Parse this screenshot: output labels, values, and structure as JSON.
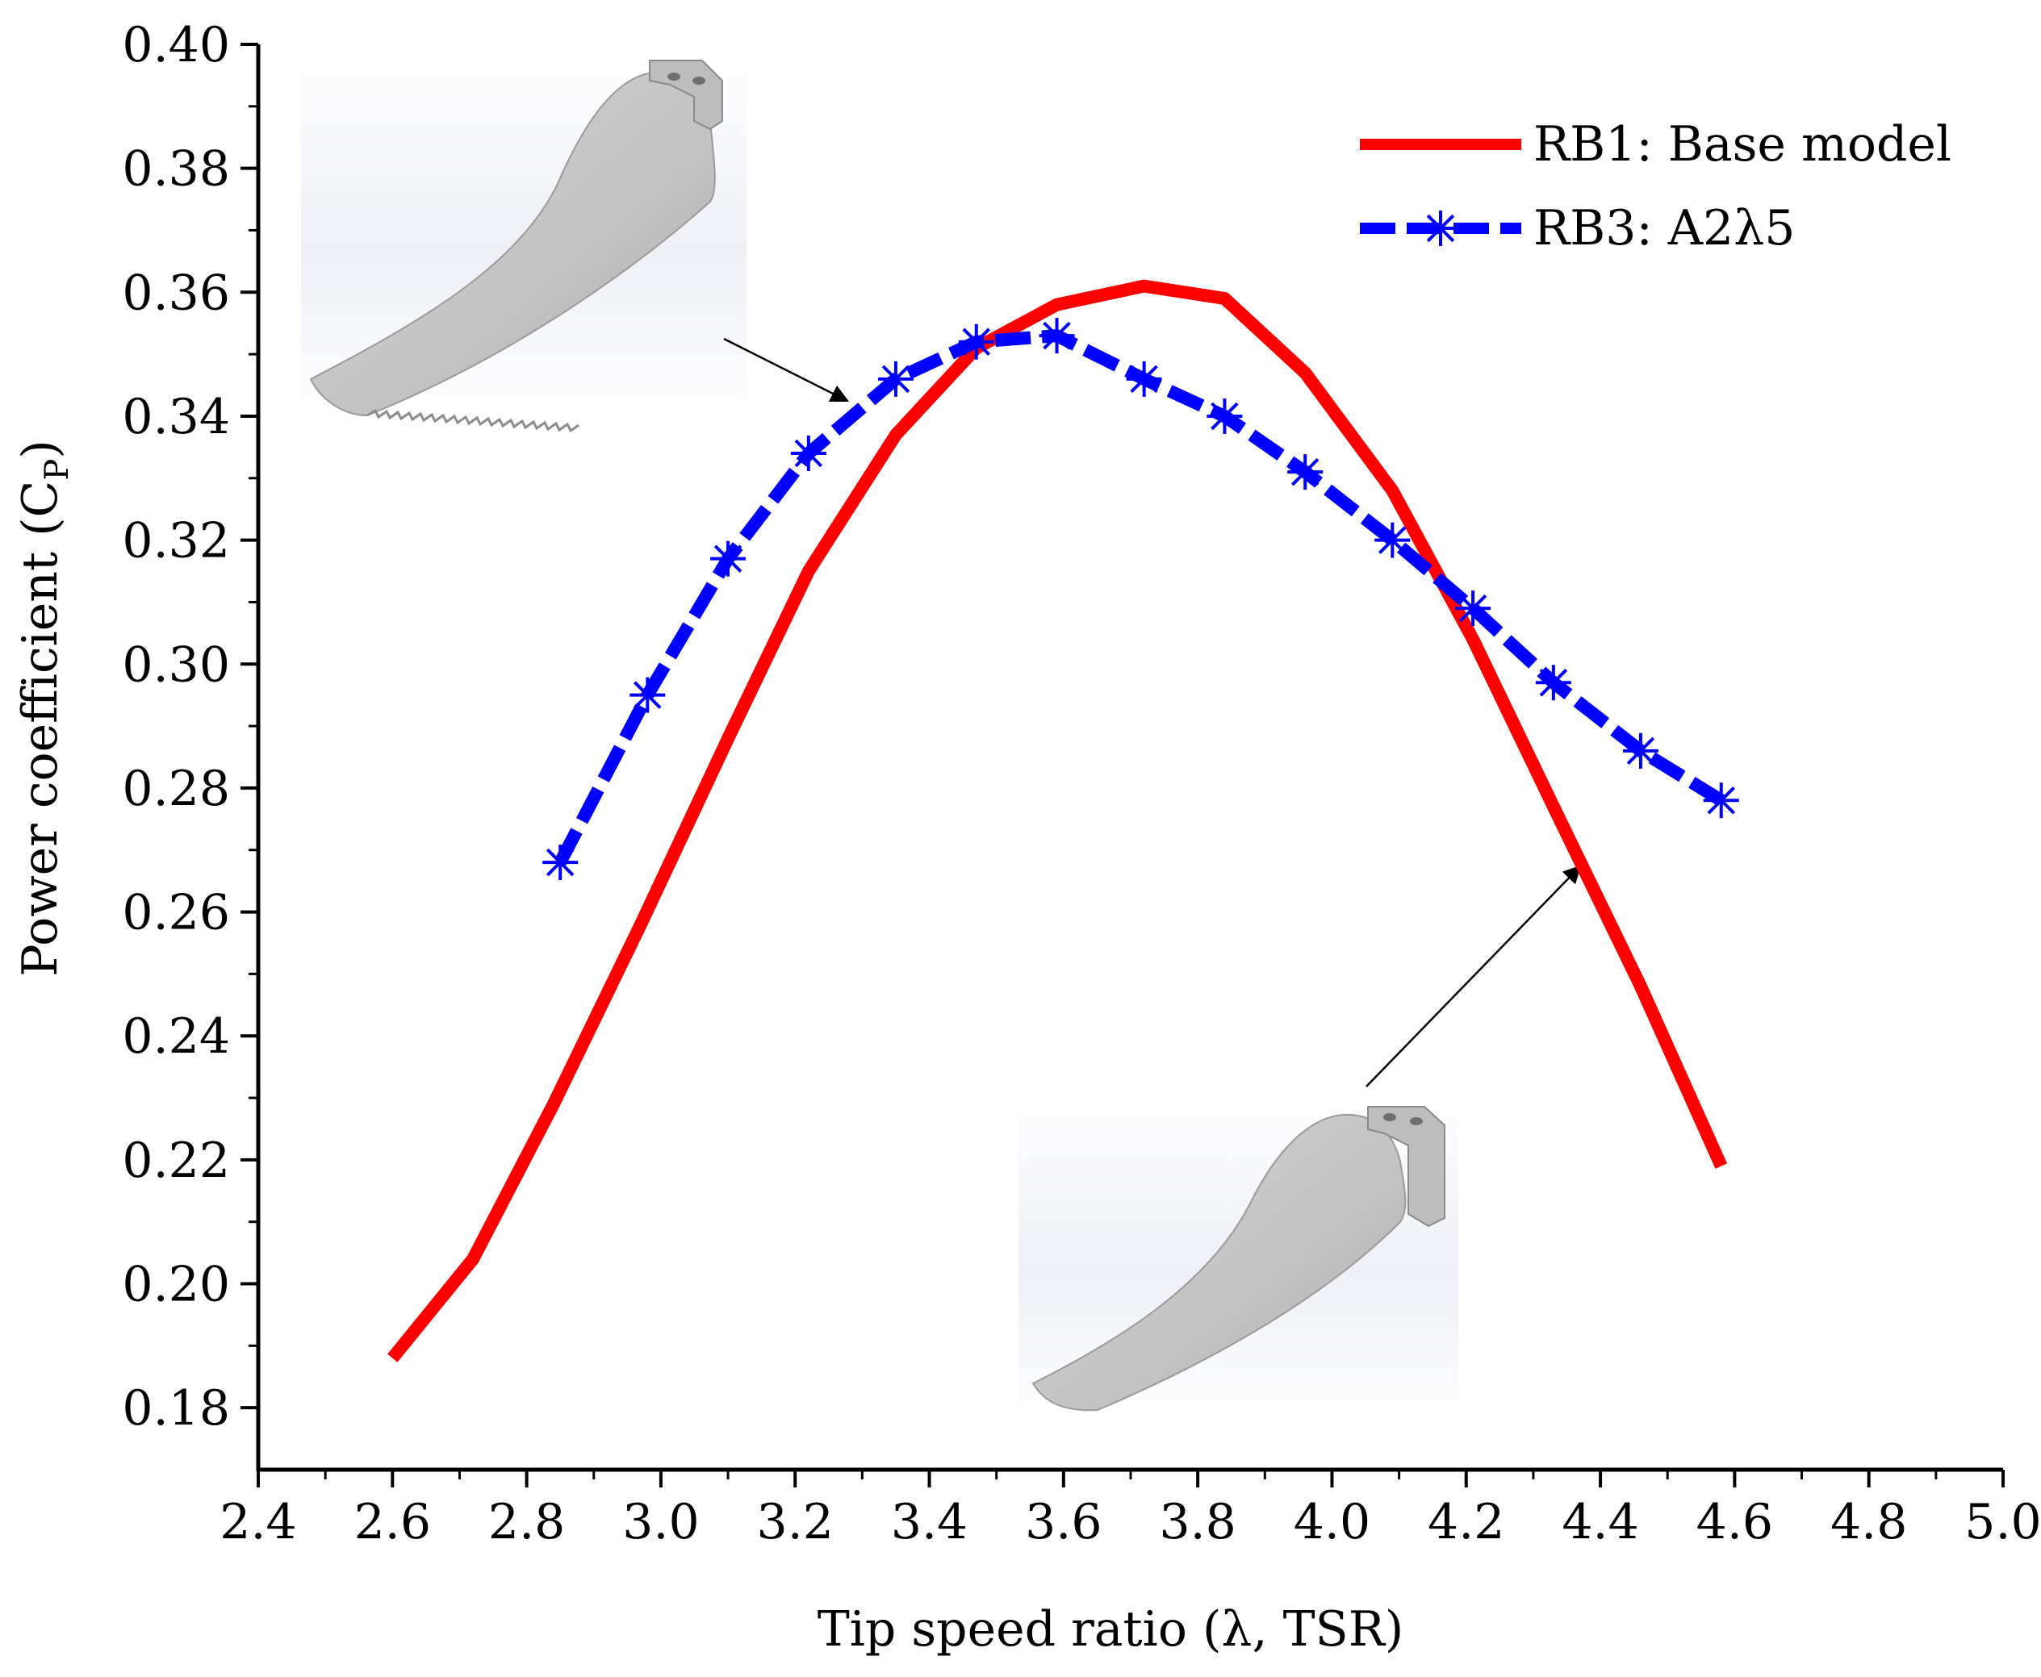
{
  "chart_data": {
    "type": "line",
    "title": "",
    "xlabel": "Tip speed ratio (λ, TSR)",
    "ylabel": "Power coefficient (C",
    "ylabel_sub": "P",
    "ylabel_close": ")",
    "xlim": [
      2.4,
      5.0
    ],
    "ylim": [
      0.17,
      0.4
    ],
    "x_ticks": [
      "2.4",
      "2.6",
      "2.8",
      "3.0",
      "3.2",
      "3.4",
      "3.6",
      "3.8",
      "4.0",
      "4.2",
      "4.4",
      "4.6",
      "4.8",
      "5.0"
    ],
    "y_ticks": [
      "0.18",
      "0.20",
      "0.22",
      "0.24",
      "0.26",
      "0.28",
      "0.30",
      "0.32",
      "0.34",
      "0.36",
      "0.38",
      "0.40"
    ],
    "legend_position": "top-right",
    "series": [
      {
        "name": "RB1: Base model",
        "color": "#ff0000",
        "style": "solid",
        "marker": "none",
        "x": [
          2.6,
          2.72,
          2.84,
          2.97,
          3.1,
          3.22,
          3.35,
          3.47,
          3.59,
          3.72,
          3.84,
          3.96,
          4.09,
          4.21,
          4.33,
          4.46,
          4.58
        ],
        "y": [
          0.188,
          0.204,
          0.229,
          0.258,
          0.288,
          0.315,
          0.337,
          0.351,
          0.358,
          0.361,
          0.359,
          0.347,
          0.328,
          0.304,
          0.277,
          0.248,
          0.219
        ]
      },
      {
        "name": "RB3: A2λ5",
        "color": "#0000ff",
        "style": "dashed",
        "marker": "asterisk",
        "x": [
          2.85,
          2.98,
          3.1,
          3.22,
          3.35,
          3.47,
          3.59,
          3.72,
          3.84,
          3.96,
          4.09,
          4.21,
          4.33,
          4.46,
          4.58
        ],
        "y": [
          0.268,
          0.295,
          0.317,
          0.334,
          0.346,
          0.352,
          0.353,
          0.346,
          0.34,
          0.331,
          0.32,
          0.309,
          0.297,
          0.286,
          0.278
        ]
      }
    ],
    "annotations": [
      {
        "type": "image-inset",
        "label": "serrated-blade-render",
        "points_to_series": "RB3: A2λ5"
      },
      {
        "type": "image-inset",
        "label": "base-blade-render",
        "points_to_series": "RB1: Base model"
      }
    ]
  }
}
